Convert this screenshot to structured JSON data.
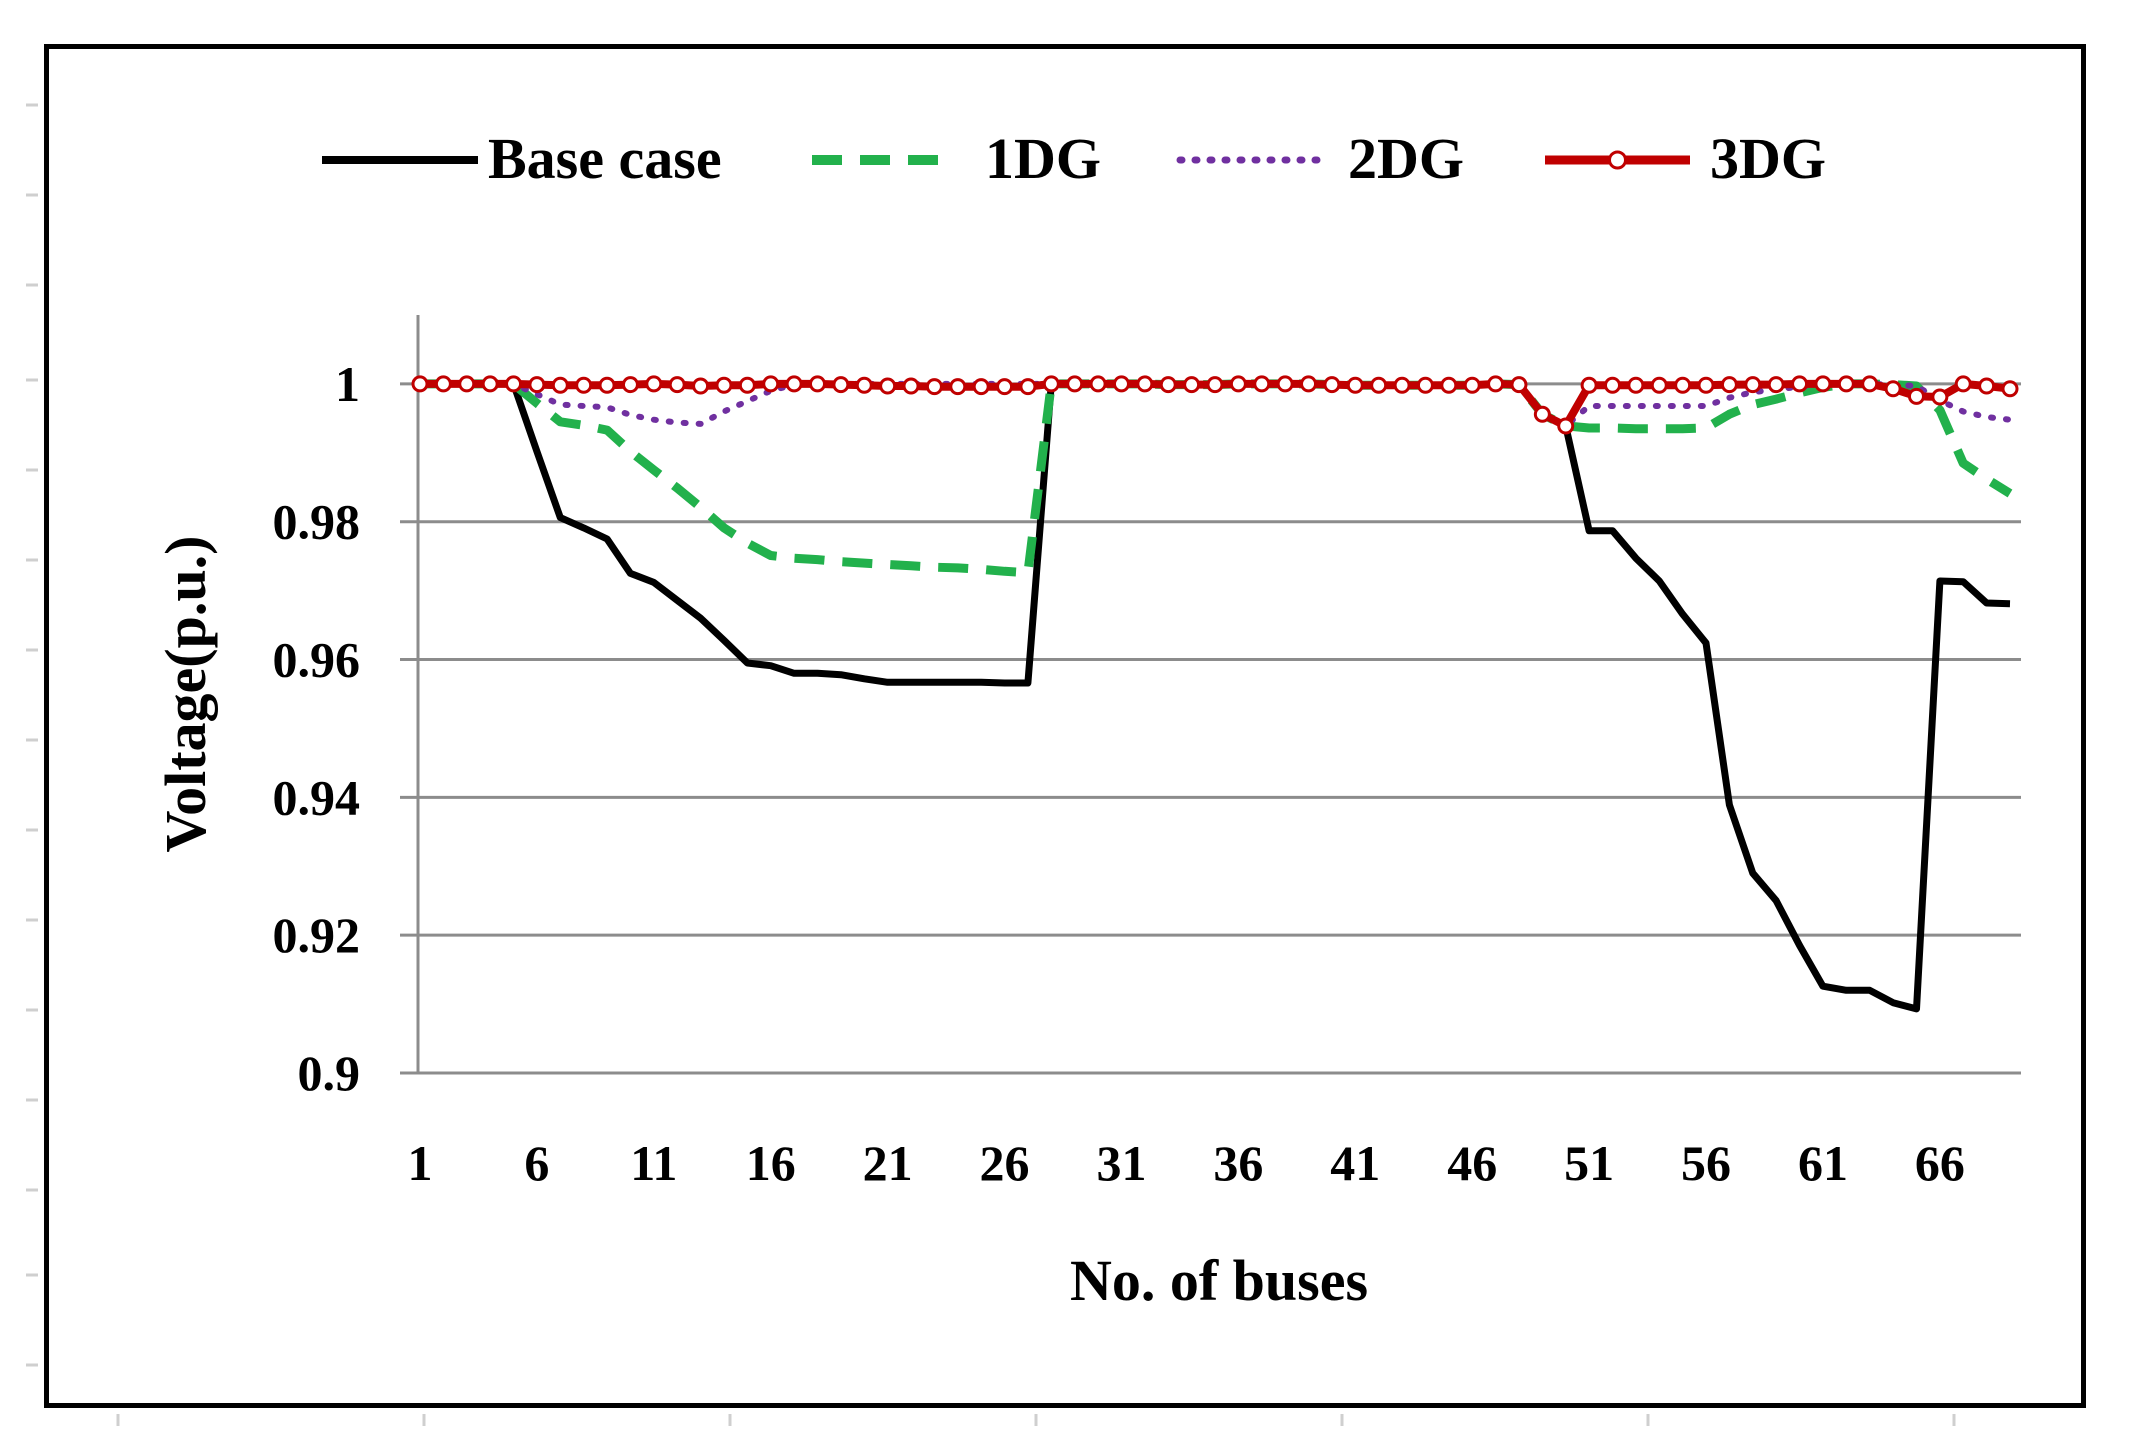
{
  "chart_data": {
    "type": "line",
    "xlabel": "No. of buses",
    "ylabel": "Voltage(p.u.)",
    "xlim": [
      1,
      69
    ],
    "ylim": [
      0.9,
      1.01
    ],
    "grid": true,
    "legend_position": "top",
    "x_tick_labels": [
      "1",
      "6",
      "11",
      "16",
      "21",
      "26",
      "31",
      "36",
      "41",
      "46",
      "51",
      "56",
      "61",
      "66"
    ],
    "y_ticks": [
      0.9,
      0.92,
      0.94,
      0.96,
      0.98,
      1
    ],
    "y_tick_labels": [
      "0.9",
      "0.92",
      "0.94",
      "0.96",
      "0.98",
      "1"
    ],
    "x": [
      1,
      2,
      3,
      4,
      5,
      6,
      7,
      8,
      9,
      10,
      11,
      12,
      13,
      14,
      15,
      16,
      17,
      18,
      19,
      20,
      21,
      22,
      23,
      24,
      25,
      26,
      27,
      28,
      29,
      30,
      31,
      32,
      33,
      34,
      35,
      36,
      37,
      38,
      39,
      40,
      41,
      42,
      43,
      44,
      45,
      46,
      47,
      48,
      49,
      50,
      51,
      52,
      53,
      54,
      55,
      56,
      57,
      58,
      59,
      60,
      61,
      62,
      63,
      64,
      65,
      66,
      67,
      68,
      69
    ],
    "series": [
      {
        "name": "Base case",
        "color": "#000000",
        "style": "solid",
        "values": [
          1,
          1,
          1,
          1,
          1,
          0.9902,
          0.9806,
          0.9791,
          0.9775,
          0.9725,
          0.9712,
          0.9686,
          0.966,
          0.9628,
          0.9595,
          0.9591,
          0.958,
          0.958,
          0.9578,
          0.9572,
          0.9567,
          0.9567,
          0.9567,
          0.9567,
          0.9567,
          0.9566,
          0.9566,
          1,
          1,
          1,
          1,
          1,
          0.9999,
          0.9999,
          0.9999,
          1,
          1,
          1,
          1,
          0.9999,
          0.9998,
          0.9998,
          0.9998,
          0.9998,
          0.9998,
          0.9998,
          1,
          0.9999,
          0.9956,
          0.9939,
          0.9787,
          0.9787,
          0.9747,
          0.9714,
          0.9666,
          0.9624,
          0.9389,
          0.929,
          0.925,
          0.9185,
          0.9126,
          0.912,
          0.912,
          0.9102,
          0.9093,
          0.9714,
          0.9713,
          0.9682,
          0.9681
        ]
      },
      {
        "name": "1DG",
        "color": "#22b14c",
        "style": "dashed",
        "values": [
          1,
          1,
          1,
          1,
          1,
          0.9972,
          0.9945,
          0.994,
          0.9933,
          0.9902,
          0.9875,
          0.9849,
          0.9821,
          0.9791,
          0.9769,
          0.9751,
          0.9747,
          0.9745,
          0.9742,
          0.974,
          0.9738,
          0.9736,
          0.9734,
          0.9733,
          0.9731,
          0.9728,
          0.9726,
          1,
          1,
          1,
          1,
          1,
          0.9999,
          0.9999,
          0.9999,
          1,
          1,
          1,
          1,
          0.9999,
          0.9998,
          0.9998,
          0.9998,
          0.9998,
          0.9998,
          0.9998,
          1,
          0.9999,
          0.9956,
          0.9939,
          0.9936,
          0.9936,
          0.9935,
          0.9935,
          0.9935,
          0.9936,
          0.9956,
          0.997,
          0.9978,
          0.9987,
          0.9995,
          1,
          1,
          0.9999,
          0.9997,
          0.9962,
          0.9885,
          0.9862,
          0.9841
        ]
      },
      {
        "name": "2DG",
        "color": "#7030a0",
        "style": "dotted",
        "values": [
          1,
          1,
          1,
          1,
          1,
          0.9985,
          0.997,
          0.9968,
          0.9966,
          0.9955,
          0.9948,
          0.9944,
          0.9942,
          0.996,
          0.9975,
          0.999,
          0.9999,
          1,
          1,
          1,
          1,
          1,
          1,
          1,
          1,
          1,
          1,
          1,
          1,
          1,
          1,
          1,
          0.9999,
          0.9999,
          0.9999,
          1,
          1,
          1,
          1,
          0.9999,
          0.9998,
          0.9998,
          0.9998,
          0.9998,
          0.9998,
          0.9998,
          1,
          0.9999,
          0.9956,
          0.9939,
          0.9968,
          0.9968,
          0.9968,
          0.9968,
          0.9968,
          0.9968,
          0.998,
          0.9988,
          0.9992,
          0.9996,
          0.9999,
          1,
          1,
          0.9999,
          0.9997,
          0.9976,
          0.996,
          0.9952,
          0.9948
        ]
      },
      {
        "name": "3DG",
        "color": "#c00000",
        "style": "solid-marker",
        "values": [
          1,
          1,
          1,
          1,
          1,
          0.9999,
          0.9998,
          0.9998,
          0.9998,
          0.9999,
          1,
          0.9999,
          0.9997,
          0.9998,
          0.9998,
          1,
          1,
          1,
          0.9999,
          0.9998,
          0.9997,
          0.9997,
          0.9996,
          0.9996,
          0.9996,
          0.9996,
          0.9996,
          1,
          1,
          1,
          1,
          1,
          0.9999,
          0.9999,
          0.9999,
          1,
          1,
          1,
          1,
          0.9999,
          0.9998,
          0.9998,
          0.9998,
          0.9998,
          0.9998,
          0.9998,
          1,
          0.9999,
          0.9956,
          0.9939,
          0.9998,
          0.9998,
          0.9998,
          0.9998,
          0.9998,
          0.9998,
          0.9999,
          0.9999,
          0.9999,
          1,
          1,
          1,
          1,
          0.9993,
          0.9982,
          0.9981,
          1,
          0.9997,
          0.9993
        ]
      }
    ]
  }
}
